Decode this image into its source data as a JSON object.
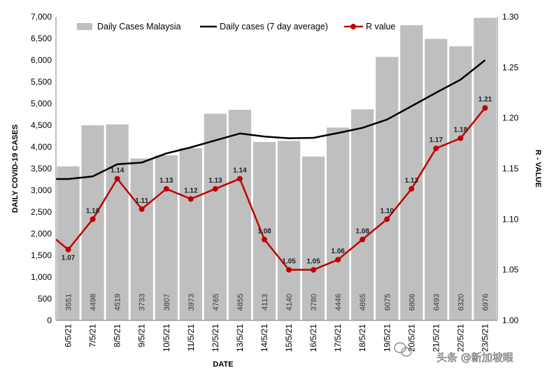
{
  "chart_data": {
    "type": "bar",
    "title": "",
    "xlabel": "DATE",
    "ylabel": "DAILY COVID-19 CASES",
    "y2label": "R - VALUE",
    "ylim": [
      0,
      7000
    ],
    "y_ticks": [
      "0",
      "500",
      "1,000",
      "1,500",
      "2,000",
      "2,500",
      "3,000",
      "3,500",
      "4,000",
      "4,500",
      "5,000",
      "5,500",
      "6,000",
      "6,500",
      "7,000"
    ],
    "y2lim": [
      1.0,
      1.3
    ],
    "y2_ticks": [
      "1.00",
      "1.05",
      "1.10",
      "1.15",
      "1.20",
      "1.25",
      "1.30"
    ],
    "grid": false,
    "legend_position": "top",
    "categories": [
      "6/5/21",
      "7/5/21",
      "8/5/21",
      "9/5/21",
      "10/5/21",
      "11/5/21",
      "12/5/21",
      "13/5/21",
      "14/5/21",
      "15/5/21",
      "16/5/21",
      "17/5/21",
      "18/5/21",
      "19/5/21",
      "20/5/21",
      "21/5/21",
      "22/5/21",
      "23/5/21"
    ],
    "series": [
      {
        "name": "Daily Cases Malaysia",
        "kind": "bar",
        "axis": "left",
        "color": "#bfbfbf",
        "values": [
          3551,
          4498,
          4519,
          3733,
          3807,
          3973,
          4765,
          4855,
          4113,
          4140,
          3780,
          4446,
          4865,
          6075,
          6806,
          6493,
          6320,
          6976
        ],
        "labels": [
          "3551",
          "4498",
          "4519",
          "3733",
          "3807",
          "3973",
          "4765",
          "4855",
          "4113",
          "4140",
          "3780",
          "4446",
          "4865",
          "6075",
          "6806",
          "6493",
          "6320",
          "6976"
        ]
      },
      {
        "name": "Daily cases (7 day average)",
        "kind": "line",
        "axis": "left",
        "color": "#000000",
        "values": [
          3260,
          3320,
          3600,
          3640,
          3850,
          3990,
          4150,
          4310,
          4240,
          4200,
          4210,
          4320,
          4440,
          4630,
          4940,
          5250,
          5550,
          6000
        ]
      },
      {
        "name": "R value",
        "kind": "line",
        "axis": "right",
        "color": "#c00000",
        "values": [
          1.07,
          1.1,
          1.14,
          1.11,
          1.13,
          1.12,
          1.13,
          1.14,
          1.08,
          1.05,
          1.05,
          1.06,
          1.08,
          1.1,
          1.13,
          1.17,
          1.18,
          1.21
        ],
        "labels": [
          "1.07",
          "1.10",
          "1.14",
          "1.11",
          "1.13",
          "1.12",
          "1.13",
          "1.14",
          "1.08",
          "1.05",
          "1.05",
          "1.06",
          "1.08",
          "1.10",
          "1.13",
          "1.17",
          "1.18",
          "1.21"
        ],
        "start_value": 1.08
      }
    ]
  },
  "watermark": {
    "text": "头条 @新加坡眼",
    "icon": "wechat-icon"
  }
}
